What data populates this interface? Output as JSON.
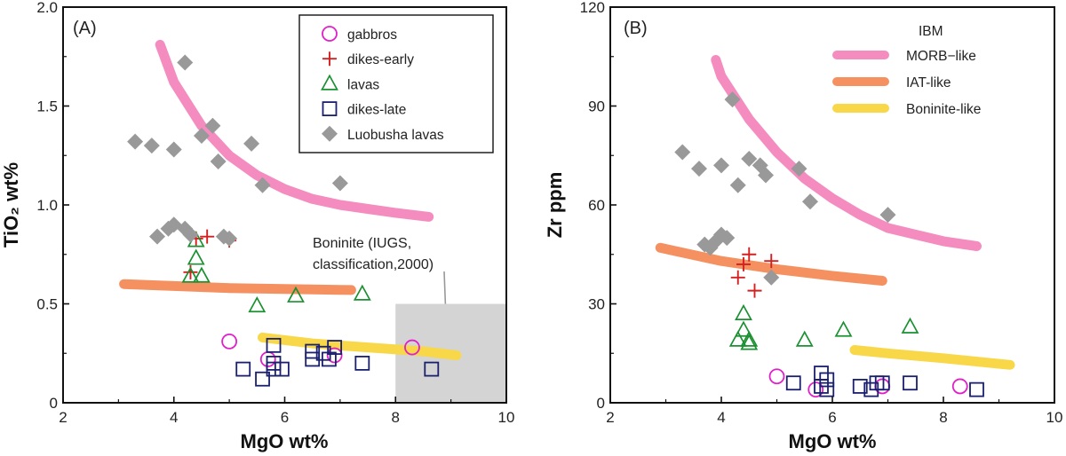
{
  "chart_data": [
    {
      "panel": "(A)",
      "type": "scatter",
      "xlabel": "MgO wt%",
      "ylabel": "TiO₂ wt%",
      "xlim": [
        2,
        10
      ],
      "ylim": [
        0,
        2.0
      ],
      "xticks": [
        "2",
        "4",
        "6",
        "8",
        "10"
      ],
      "yticks": [
        "0",
        "0.5",
        "1.0",
        "1.5",
        "2.0"
      ],
      "colors": {
        "gabbros": "#e020c8",
        "dikes_early": "#d42020",
        "lavas": "#1a9030",
        "dikes_late": "#1a1f6e",
        "luobusha": "#999999",
        "morb": "#f48cc0",
        "iat": "#f59060",
        "boninite": "#f8d848",
        "box": "#d4d4d4"
      },
      "legend": [
        "gabbros",
        "dikes-early",
        "lavas",
        "dikes-late",
        "Luobusha lavas"
      ],
      "series": [
        {
          "name": "gabbros",
          "marker": "circle",
          "points": [
            [
              5.0,
              0.31
            ],
            [
              5.7,
              0.22
            ],
            [
              6.9,
              0.24
            ],
            [
              8.3,
              0.28
            ]
          ]
        },
        {
          "name": "dikes-early",
          "marker": "plus",
          "points": [
            [
              4.4,
              0.83
            ],
            [
              4.6,
              0.84
            ],
            [
              5.0,
              0.82
            ],
            [
              4.3,
              0.66
            ]
          ]
        },
        {
          "name": "lavas",
          "marker": "triangle",
          "points": [
            [
              4.3,
              0.64
            ],
            [
              4.5,
              0.64
            ],
            [
              4.4,
              0.73
            ],
            [
              4.4,
              0.82
            ],
            [
              5.5,
              0.49
            ],
            [
              6.2,
              0.54
            ],
            [
              7.4,
              0.55
            ]
          ]
        },
        {
          "name": "dikes-late",
          "marker": "square",
          "points": [
            [
              5.25,
              0.17
            ],
            [
              5.6,
              0.12
            ],
            [
              5.8,
              0.29
            ],
            [
              5.8,
              0.2
            ],
            [
              5.8,
              0.17
            ],
            [
              5.95,
              0.17
            ],
            [
              6.5,
              0.26
            ],
            [
              6.5,
              0.22
            ],
            [
              6.7,
              0.25
            ],
            [
              6.8,
              0.22
            ],
            [
              6.9,
              0.28
            ],
            [
              7.4,
              0.2
            ],
            [
              8.65,
              0.17
            ]
          ]
        },
        {
          "name": "Luobusha lavas",
          "marker": "diamond",
          "points": [
            [
              4.2,
              1.72
            ],
            [
              4.7,
              1.4
            ],
            [
              4.5,
              1.35
            ],
            [
              5.4,
              1.31
            ],
            [
              3.3,
              1.32
            ],
            [
              3.6,
              1.3
            ],
            [
              4.0,
              1.28
            ],
            [
              4.8,
              1.22
            ],
            [
              5.6,
              1.1
            ],
            [
              7.0,
              1.11
            ],
            [
              3.7,
              0.84
            ],
            [
              3.9,
              0.88
            ],
            [
              4.0,
              0.9
            ],
            [
              4.2,
              0.88
            ],
            [
              4.3,
              0.85
            ],
            [
              4.9,
              0.84
            ],
            [
              5.0,
              0.83
            ]
          ]
        }
      ],
      "curves": [
        {
          "name": "MORB-like",
          "points": [
            [
              3.75,
              1.81
            ],
            [
              4.0,
              1.62
            ],
            [
              4.5,
              1.4
            ],
            [
              5.0,
              1.25
            ],
            [
              5.5,
              1.15
            ],
            [
              6.0,
              1.08
            ],
            [
              6.5,
              1.03
            ],
            [
              7.0,
              1.0
            ],
            [
              7.5,
              0.98
            ],
            [
              8.0,
              0.96
            ],
            [
              8.6,
              0.94
            ]
          ]
        },
        {
          "name": "IAT-like",
          "points": [
            [
              3.1,
              0.6
            ],
            [
              4.0,
              0.59
            ],
            [
              5.0,
              0.58
            ],
            [
              6.0,
              0.575
            ],
            [
              7.2,
              0.57
            ]
          ]
        },
        {
          "name": "Boninite-like",
          "points": [
            [
              5.6,
              0.33
            ],
            [
              6.5,
              0.3
            ],
            [
              7.5,
              0.28
            ],
            [
              8.5,
              0.26
            ],
            [
              9.1,
              0.24
            ]
          ]
        }
      ],
      "boninite_box": {
        "x": [
          8,
          10
        ],
        "y": [
          0,
          0.5
        ],
        "label_line1": "Boninite (IUGS,",
        "label_line2": "classification,2000)"
      }
    },
    {
      "panel": "(B)",
      "type": "scatter",
      "xlabel": "MgO wt%",
      "ylabel": "Zr ppm",
      "xlim": [
        2,
        10
      ],
      "ylim": [
        0,
        120
      ],
      "xticks": [
        "2",
        "4",
        "6",
        "8",
        "10"
      ],
      "yticks": [
        "0",
        "30",
        "60",
        "90",
        "120"
      ],
      "legend_title": "IBM",
      "legend": [
        "MORB−like",
        "IAT-like",
        "Boninite-like"
      ],
      "series": [
        {
          "name": "gabbros",
          "marker": "circle",
          "points": [
            [
              5.0,
              8
            ],
            [
              5.7,
              4
            ],
            [
              6.9,
              5
            ],
            [
              8.3,
              5
            ]
          ]
        },
        {
          "name": "dikes-early",
          "marker": "plus",
          "points": [
            [
              4.5,
              45
            ],
            [
              4.4,
              42
            ],
            [
              4.9,
              43
            ],
            [
              4.3,
              38
            ],
            [
              4.6,
              34
            ]
          ]
        },
        {
          "name": "lavas",
          "marker": "triangle",
          "points": [
            [
              4.4,
              27
            ],
            [
              4.4,
              22
            ],
            [
              4.5,
              19
            ],
            [
              4.3,
              19
            ],
            [
              4.5,
              18
            ],
            [
              5.5,
              19
            ],
            [
              6.2,
              22
            ],
            [
              7.4,
              23
            ]
          ]
        },
        {
          "name": "dikes-late",
          "marker": "square",
          "points": [
            [
              5.3,
              6
            ],
            [
              5.8,
              9
            ],
            [
              5.9,
              7
            ],
            [
              5.8,
              5
            ],
            [
              5.9,
              4
            ],
            [
              6.5,
              5
            ],
            [
              6.7,
              4
            ],
            [
              6.8,
              6
            ],
            [
              6.9,
              6
            ],
            [
              7.4,
              6
            ],
            [
              8.6,
              4
            ]
          ]
        },
        {
          "name": "Luobusha lavas",
          "marker": "diamond",
          "points": [
            [
              4.2,
              92
            ],
            [
              3.3,
              76
            ],
            [
              3.6,
              71
            ],
            [
              4.0,
              72
            ],
            [
              4.5,
              74
            ],
            [
              4.7,
              72
            ],
            [
              4.8,
              69
            ],
            [
              4.3,
              66
            ],
            [
              5.4,
              71
            ],
            [
              5.6,
              61
            ],
            [
              7.0,
              57
            ],
            [
              3.7,
              48
            ],
            [
              3.9,
              49
            ],
            [
              4.0,
              51
            ],
            [
              4.1,
              50
            ],
            [
              3.8,
              47
            ],
            [
              4.9,
              38
            ]
          ]
        }
      ],
      "curves": [
        {
          "name": "MORB-like",
          "points": [
            [
              3.9,
              104
            ],
            [
              4.0,
              99
            ],
            [
              4.5,
              86
            ],
            [
              5.0,
              76
            ],
            [
              5.5,
              68
            ],
            [
              6.0,
              62
            ],
            [
              6.5,
              57
            ],
            [
              7.0,
              53
            ],
            [
              7.5,
              51
            ],
            [
              8.0,
              49
            ],
            [
              8.6,
              47.5
            ]
          ]
        },
        {
          "name": "IAT-like",
          "points": [
            [
              2.9,
              47
            ],
            [
              4.0,
              43
            ],
            [
              5.0,
              40.5
            ],
            [
              6.0,
              38.5
            ],
            [
              6.9,
              37
            ]
          ]
        },
        {
          "name": "Boninite-like",
          "points": [
            [
              6.4,
              16
            ],
            [
              7.0,
              15
            ],
            [
              8.0,
              13.5
            ],
            [
              9.2,
              11.5
            ]
          ]
        }
      ]
    }
  ]
}
